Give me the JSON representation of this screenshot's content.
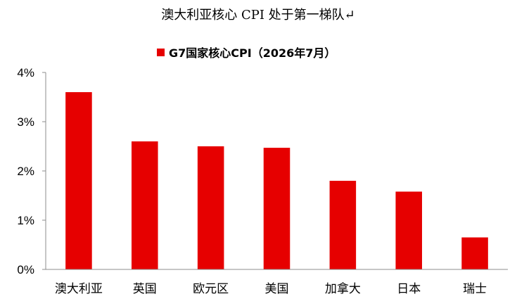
{
  "title": "澳大利亚核心 CPI 处于第一梯队↵",
  "colors": {
    "bar": "#e60000",
    "axis": "#8c8c8c",
    "text": "#000000"
  },
  "chart_data": {
    "type": "bar",
    "title": "澳大利亚核心 CPI 处于第一梯队↵",
    "categories": [
      "澳大利亚",
      "英国",
      "欧元区",
      "美国",
      "加拿大",
      "日本",
      "瑞士"
    ],
    "series": [
      {
        "name": "G7国家核心CPI（2026年7月）",
        "values": [
          3.6,
          2.6,
          2.5,
          2.47,
          1.8,
          1.58,
          0.65
        ]
      }
    ],
    "ylim": [
      0,
      4
    ],
    "yticks": [
      0,
      1,
      2,
      3,
      4
    ],
    "ytick_labels": [
      "0%",
      "1%",
      "2%",
      "3%",
      "4%"
    ],
    "xlabel": "",
    "ylabel": "",
    "grid": false,
    "legend_position": "top-center"
  }
}
